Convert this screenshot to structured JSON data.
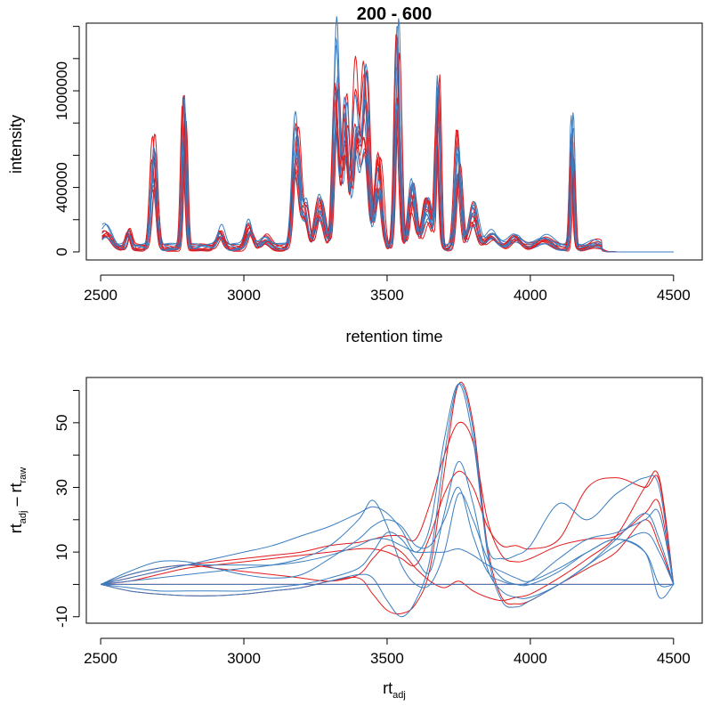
{
  "chart_data": [
    {
      "type": "line",
      "title": "200 - 600",
      "xlabel": "retention time",
      "ylabel": "intensity",
      "xlim": [
        2450,
        4600
      ],
      "ylim": [
        -50000,
        1420000
      ],
      "x_ticks": [
        2500,
        3000,
        3500,
        4000,
        4500
      ],
      "x_tick_labels": [
        "2500",
        "3000",
        "3500",
        "4000",
        "4500"
      ],
      "y_ticks": [
        0,
        200000,
        400000,
        600000,
        800000,
        1000000,
        1200000,
        1400000
      ],
      "y_tick_labels": [
        "0",
        "",
        "400000",
        "",
        "",
        "1000000",
        "",
        ""
      ],
      "grid": false,
      "series_colors": [
        "#e31a1c",
        "#3a7dc0"
      ],
      "peaks": [
        {
          "rt": 2520,
          "height": 120000,
          "width": 20
        },
        {
          "rt": 2600,
          "height": 110000,
          "width": 8
        },
        {
          "rt": 2685,
          "height": 650000,
          "width": 10
        },
        {
          "rt": 2795,
          "height": 900000,
          "width": 7
        },
        {
          "rt": 2920,
          "height": 120000,
          "width": 12
        },
        {
          "rt": 3020,
          "height": 150000,
          "width": 12
        },
        {
          "rt": 3080,
          "height": 60000,
          "width": 15
        },
        {
          "rt": 3185,
          "height": 760000,
          "width": 12
        },
        {
          "rt": 3215,
          "height": 250000,
          "width": 10
        },
        {
          "rt": 3270,
          "height": 300000,
          "width": 15
        },
        {
          "rt": 3325,
          "height": 1300000,
          "width": 10
        },
        {
          "rt": 3355,
          "height": 950000,
          "width": 10
        },
        {
          "rt": 3395,
          "height": 1050000,
          "width": 12
        },
        {
          "rt": 3425,
          "height": 1050000,
          "width": 12
        },
        {
          "rt": 3470,
          "height": 550000,
          "width": 12
        },
        {
          "rt": 3540,
          "height": 1300000,
          "width": 9
        },
        {
          "rt": 3590,
          "height": 400000,
          "width": 12
        },
        {
          "rt": 3640,
          "height": 300000,
          "width": 15
        },
        {
          "rt": 3680,
          "height": 1000000,
          "width": 7
        },
        {
          "rt": 3750,
          "height": 700000,
          "width": 10
        },
        {
          "rt": 3800,
          "height": 250000,
          "width": 15
        },
        {
          "rt": 3870,
          "height": 100000,
          "width": 20
        },
        {
          "rt": 3950,
          "height": 80000,
          "width": 20
        },
        {
          "rt": 4050,
          "height": 60000,
          "width": 25
        },
        {
          "rt": 4150,
          "height": 780000,
          "width": 6
        },
        {
          "rt": 4230,
          "height": 30000,
          "width": 20
        }
      ],
      "sample_count": 14,
      "x_range": [
        2505,
        4500
      ]
    },
    {
      "type": "line",
      "title": "",
      "xlabel": "rt",
      "xlabel_sub": "adj",
      "ylabel_parts": [
        "rt",
        "adj",
        " – rt",
        "raw"
      ],
      "xlim": [
        2450,
        4600
      ],
      "ylim": [
        -12,
        64
      ],
      "x_ticks": [
        2500,
        3000,
        3500,
        4000,
        4500
      ],
      "x_tick_labels": [
        "2500",
        "3000",
        "3500",
        "4000",
        "4500"
      ],
      "y_ticks": [
        -10,
        0,
        10,
        20,
        30,
        40,
        50,
        60
      ],
      "y_tick_labels": [
        "-10",
        "",
        "10",
        "",
        "30",
        "",
        "50",
        ""
      ],
      "grid": false,
      "x": [
        2500,
        2600,
        2700,
        2800,
        2900,
        3000,
        3100,
        3200,
        3300,
        3400,
        3450,
        3500,
        3550,
        3600,
        3650,
        3700,
        3750,
        3800,
        3850,
        3900,
        3950,
        4000,
        4100,
        4200,
        4300,
        4400,
        4450,
        4500
      ],
      "series": [
        {
          "color": "#e31a1c",
          "values": [
            0,
            2,
            4,
            6,
            7,
            8,
            9,
            10,
            12,
            13,
            14,
            15,
            15,
            14,
            25,
            40,
            50,
            44,
            20,
            9,
            7,
            8,
            12,
            14,
            15,
            22,
            25,
            0
          ]
        },
        {
          "color": "#e31a1c",
          "values": [
            0,
            -2,
            -3,
            -3.5,
            -3.5,
            -3,
            -2,
            -1,
            1,
            2,
            -3,
            -8,
            -9,
            -6,
            5,
            35,
            62,
            50,
            12,
            -4,
            -6,
            -5,
            0,
            5,
            10,
            20,
            12,
            0
          ]
        },
        {
          "color": "#e31a1c",
          "values": [
            0,
            1,
            3,
            5,
            6,
            7,
            8,
            9,
            10,
            11,
            11,
            10,
            8,
            6,
            15,
            28,
            35,
            30,
            18,
            12,
            12,
            11,
            14,
            30,
            33,
            30,
            32,
            0
          ]
        },
        {
          "color": "#e31a1c",
          "values": [
            0,
            0,
            0,
            0,
            0,
            0,
            0,
            0,
            0,
            0,
            0,
            0,
            0,
            0,
            0,
            0,
            0,
            0,
            0,
            0,
            0,
            0,
            0,
            0,
            0,
            0,
            0,
            0
          ]
        },
        {
          "color": "#e31a1c",
          "values": [
            0,
            3,
            5,
            6,
            5,
            4,
            3,
            2,
            1,
            3,
            8,
            12,
            10,
            5,
            1,
            -1,
            1,
            -2,
            -4,
            -5,
            -4,
            -3,
            2,
            8,
            15,
            30,
            33,
            0
          ]
        },
        {
          "color": "#3a7dc0",
          "values": [
            0,
            4,
            7,
            7,
            5,
            3,
            2,
            3,
            8,
            14,
            18,
            20,
            18,
            12,
            12,
            20,
            30,
            15,
            4,
            1,
            0,
            1,
            8,
            14,
            16,
            20,
            22,
            0
          ]
        },
        {
          "color": "#3a7dc0",
          "values": [
            0,
            2,
            4,
            6,
            8,
            10,
            12,
            15,
            18,
            22,
            24,
            22,
            17,
            10,
            18,
            45,
            62,
            45,
            12,
            8,
            9,
            12,
            25,
            20,
            28,
            33,
            30,
            0
          ]
        },
        {
          "color": "#3a7dc0",
          "values": [
            0,
            -1,
            -2,
            -2,
            -2,
            -2,
            -1,
            0,
            2,
            5,
            10,
            16,
            14,
            8,
            4,
            22,
            38,
            25,
            5,
            -2,
            -4,
            -4,
            0,
            6,
            12,
            16,
            10,
            0
          ]
        },
        {
          "color": "#3a7dc0",
          "values": [
            0,
            1,
            2,
            3,
            4,
            5,
            6,
            8,
            12,
            20,
            26,
            18,
            6,
            0,
            0,
            10,
            28,
            20,
            8,
            2,
            0,
            0,
            4,
            10,
            14,
            10,
            0,
            0
          ]
        },
        {
          "color": "#3a7dc0",
          "values": [
            0,
            0,
            0,
            0,
            0,
            0,
            0,
            0,
            0,
            0,
            0,
            0,
            0,
            0,
            0,
            0,
            0,
            0,
            0,
            0,
            0,
            0,
            0,
            0,
            0,
            0,
            0,
            0
          ]
        },
        {
          "color": "#3a7dc0",
          "values": [
            0,
            -2,
            -3,
            -3.5,
            -3.5,
            -3,
            -2,
            -1,
            1,
            3,
            2,
            -5,
            -10,
            -5,
            8,
            40,
            62,
            48,
            10,
            -5,
            -7,
            -5,
            0,
            6,
            14,
            22,
            14,
            0
          ]
        },
        {
          "color": "#3a7dc0",
          "values": [
            0,
            3,
            5,
            6,
            6,
            6,
            6,
            7,
            9,
            12,
            14,
            14,
            12,
            10,
            10,
            10,
            11,
            9,
            6,
            4,
            2,
            1,
            5,
            10,
            14,
            10,
            -4,
            0
          ]
        }
      ]
    }
  ]
}
